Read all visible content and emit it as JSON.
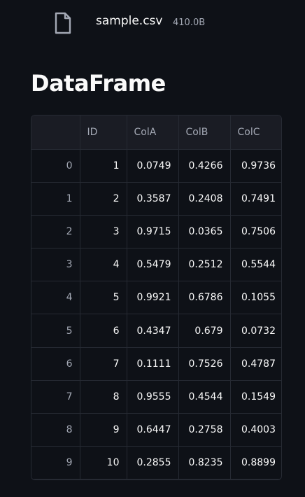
{
  "file": {
    "icon": "file-icon",
    "name": "sample.csv",
    "size": "410.0B"
  },
  "title": "DataFrame",
  "table": {
    "columns": [
      "",
      "ID",
      "ColA",
      "ColB",
      "ColC"
    ],
    "rows": [
      {
        "index": "0",
        "id": "1",
        "a": "0.0749",
        "b": "0.4266",
        "c": "0.9736"
      },
      {
        "index": "1",
        "id": "2",
        "a": "0.3587",
        "b": "0.2408",
        "c": "0.7491"
      },
      {
        "index": "2",
        "id": "3",
        "a": "0.9715",
        "b": "0.0365",
        "c": "0.7506"
      },
      {
        "index": "3",
        "id": "4",
        "a": "0.5479",
        "b": "0.2512",
        "c": "0.5544"
      },
      {
        "index": "4",
        "id": "5",
        "a": "0.9921",
        "b": "0.6786",
        "c": "0.1055"
      },
      {
        "index": "5",
        "id": "6",
        "a": "0.4347",
        "b": "0.679",
        "c": "0.0732"
      },
      {
        "index": "6",
        "id": "7",
        "a": "0.1111",
        "b": "0.7526",
        "c": "0.4787"
      },
      {
        "index": "7",
        "id": "8",
        "a": "0.9555",
        "b": "0.4544",
        "c": "0.1549"
      },
      {
        "index": "8",
        "id": "9",
        "a": "0.6447",
        "b": "0.2758",
        "c": "0.4003"
      },
      {
        "index": "9",
        "id": "10",
        "a": "0.2855",
        "b": "0.8235",
        "c": "0.8899"
      }
    ]
  },
  "colors": {
    "background": "#0e1117",
    "header_bg": "#1a1c24",
    "border": "#262a33",
    "muted_text": "#a3a8b4",
    "text": "#fafafa"
  }
}
